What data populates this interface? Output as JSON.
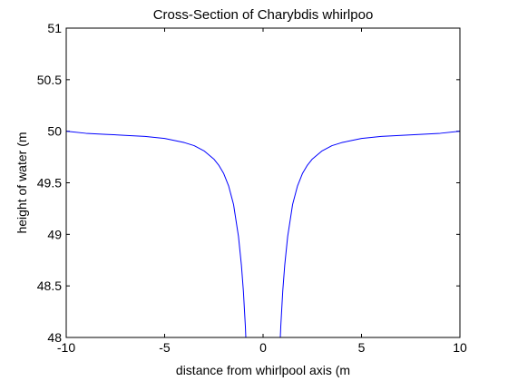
{
  "chart_data": {
    "type": "line",
    "title": "Cross-Section of Charybdis whirlpoo",
    "xlabel": "distance from whirlpool axis (m",
    "ylabel": "height of water (m",
    "xlim": [
      -10,
      10
    ],
    "ylim": [
      48,
      51
    ],
    "x_ticks": [
      "-10",
      "-5",
      "0",
      "5",
      "10"
    ],
    "y_ticks": [
      "48",
      "48.5",
      "49",
      "49.5",
      "50",
      "50.5",
      "51"
    ],
    "grid": false,
    "line_color": "#0000ff",
    "series": [
      {
        "x": [
          -10,
          -9,
          -8,
          -7,
          -6,
          -5,
          -4.5,
          -4,
          -3.5,
          -3,
          -2.5,
          -2.25,
          -2,
          -1.75,
          -1.5,
          -1.25,
          -1.1,
          -1.0,
          -0.9,
          -0.8
        ],
        "y": [
          50.0,
          49.98,
          49.97,
          49.96,
          49.95,
          49.93,
          49.91,
          49.89,
          49.86,
          49.81,
          49.73,
          49.67,
          49.59,
          49.47,
          49.29,
          48.98,
          48.7,
          48.45,
          48.11,
          47.65
        ]
      },
      {
        "x": [
          0.8,
          0.9,
          1.0,
          1.1,
          1.25,
          1.5,
          1.75,
          2,
          2.25,
          2.5,
          3,
          3.5,
          4,
          4.5,
          5,
          6,
          7,
          8,
          9,
          10
        ],
        "y": [
          47.65,
          48.11,
          48.45,
          48.7,
          48.98,
          49.29,
          49.47,
          49.59,
          49.67,
          49.73,
          49.81,
          49.86,
          49.89,
          49.91,
          49.93,
          49.95,
          49.96,
          49.97,
          49.98,
          50.0
        ]
      }
    ]
  }
}
